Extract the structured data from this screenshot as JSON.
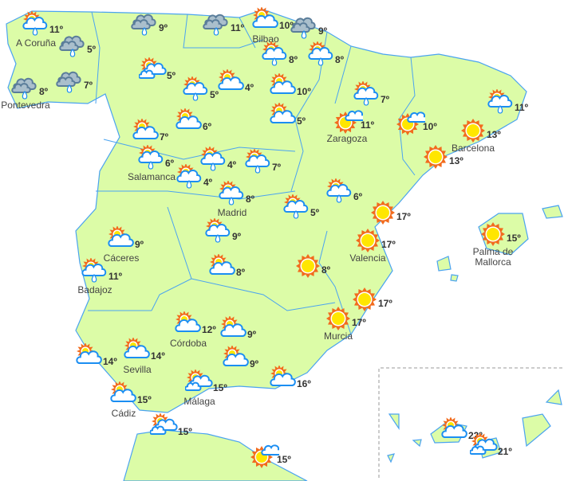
{
  "colors": {
    "land": "#dcfca7",
    "border": "#4aa3f0",
    "sun": "#ffe600",
    "sun_rays": "#f26b1d",
    "cloud_stroke": "#1b8ef2",
    "rain_cloud": "#aabfcc",
    "rain_cloud_stroke": "#5a7d9a"
  },
  "stations": [
    {
      "icon": "partly-cloudy-rain",
      "temp": "11º",
      "label": "A Coruña"
    },
    {
      "icon": "rain-cloud",
      "temp": "5º"
    },
    {
      "icon": "rain-cloud",
      "temp": "8º",
      "label": "Pontevedra"
    },
    {
      "icon": "rain-cloud",
      "temp": "7º"
    },
    {
      "icon": "rain-cloud",
      "temp": "9º"
    },
    {
      "icon": "rain-cloud",
      "temp": "11º"
    },
    {
      "icon": "partly-cloudy",
      "temp": "10º",
      "label": "Bilbao"
    },
    {
      "icon": "rain-cloud",
      "temp": "9º"
    },
    {
      "icon": "partly-cloudy-rain",
      "temp": "8º"
    },
    {
      "icon": "partly-cloudy-rain",
      "temp": "8º"
    },
    {
      "icon": "partly-cloudy-double",
      "temp": "5º"
    },
    {
      "icon": "partly-cloudy-rain",
      "temp": "5º"
    },
    {
      "icon": "partly-cloudy",
      "temp": "4º"
    },
    {
      "icon": "partly-cloudy",
      "temp": "10º"
    },
    {
      "icon": "partly-cloudy",
      "temp": "5º"
    },
    {
      "icon": "partly-cloudy-rain",
      "temp": "7º"
    },
    {
      "icon": "sun-small-cloud",
      "temp": "11º",
      "label": "Zaragoza"
    },
    {
      "icon": "sun-small-cloud",
      "temp": "10º"
    },
    {
      "icon": "partly-cloudy-rain",
      "temp": "11º"
    },
    {
      "icon": "sun",
      "temp": "13º",
      "label": "Barcelona"
    },
    {
      "icon": "sun",
      "temp": "13º"
    },
    {
      "icon": "partly-cloudy",
      "temp": "7º"
    },
    {
      "icon": "partly-cloudy",
      "temp": "6º"
    },
    {
      "icon": "partly-cloudy-rain",
      "temp": "6º",
      "label": "Salamanca"
    },
    {
      "icon": "partly-cloudy-rain",
      "temp": "4º"
    },
    {
      "icon": "partly-cloudy-rain",
      "temp": "4º"
    },
    {
      "icon": "partly-cloudy-rain",
      "temp": "7º"
    },
    {
      "icon": "partly-cloudy-rain",
      "temp": "8º",
      "label": "Madrid"
    },
    {
      "icon": "partly-cloudy-rain",
      "temp": "5º"
    },
    {
      "icon": "partly-cloudy-rain",
      "temp": "6º"
    },
    {
      "icon": "sun",
      "temp": "17º"
    },
    {
      "icon": "sun",
      "temp": "17º",
      "label": "Valencia"
    },
    {
      "icon": "sun",
      "temp": "15º",
      "label": "Palma de\nMallorca"
    },
    {
      "icon": "partly-cloudy",
      "temp": "9º",
      "label": "Cáceres"
    },
    {
      "icon": "partly-cloudy-rain",
      "temp": "9º"
    },
    {
      "icon": "partly-cloudy",
      "temp": "8º"
    },
    {
      "icon": "sun",
      "temp": "8º"
    },
    {
      "icon": "partly-cloudy-rain",
      "temp": "11º",
      "label": "Badajoz"
    },
    {
      "icon": "sun",
      "temp": "17º"
    },
    {
      "icon": "sun",
      "temp": "17º",
      "label": "Murcia"
    },
    {
      "icon": "partly-cloudy",
      "temp": "12º",
      "label": "Córdoba"
    },
    {
      "icon": "partly-cloudy",
      "temp": "9º"
    },
    {
      "icon": "partly-cloudy",
      "temp": "14º"
    },
    {
      "icon": "partly-cloudy",
      "temp": "14º",
      "label": "Sevilla"
    },
    {
      "icon": "partly-cloudy",
      "temp": "9º"
    },
    {
      "icon": "partly-cloudy",
      "temp": "16º"
    },
    {
      "icon": "partly-cloudy-double",
      "temp": "15º",
      "label": "Málaga"
    },
    {
      "icon": "partly-cloudy",
      "temp": "15º",
      "label": "Cádiz"
    },
    {
      "icon": "partly-cloudy-double",
      "temp": "15º"
    },
    {
      "icon": "sun-small-cloud",
      "temp": "15º"
    },
    {
      "icon": "partly-cloudy",
      "temp": "22º"
    },
    {
      "icon": "partly-cloudy-double",
      "temp": "21º"
    }
  ]
}
